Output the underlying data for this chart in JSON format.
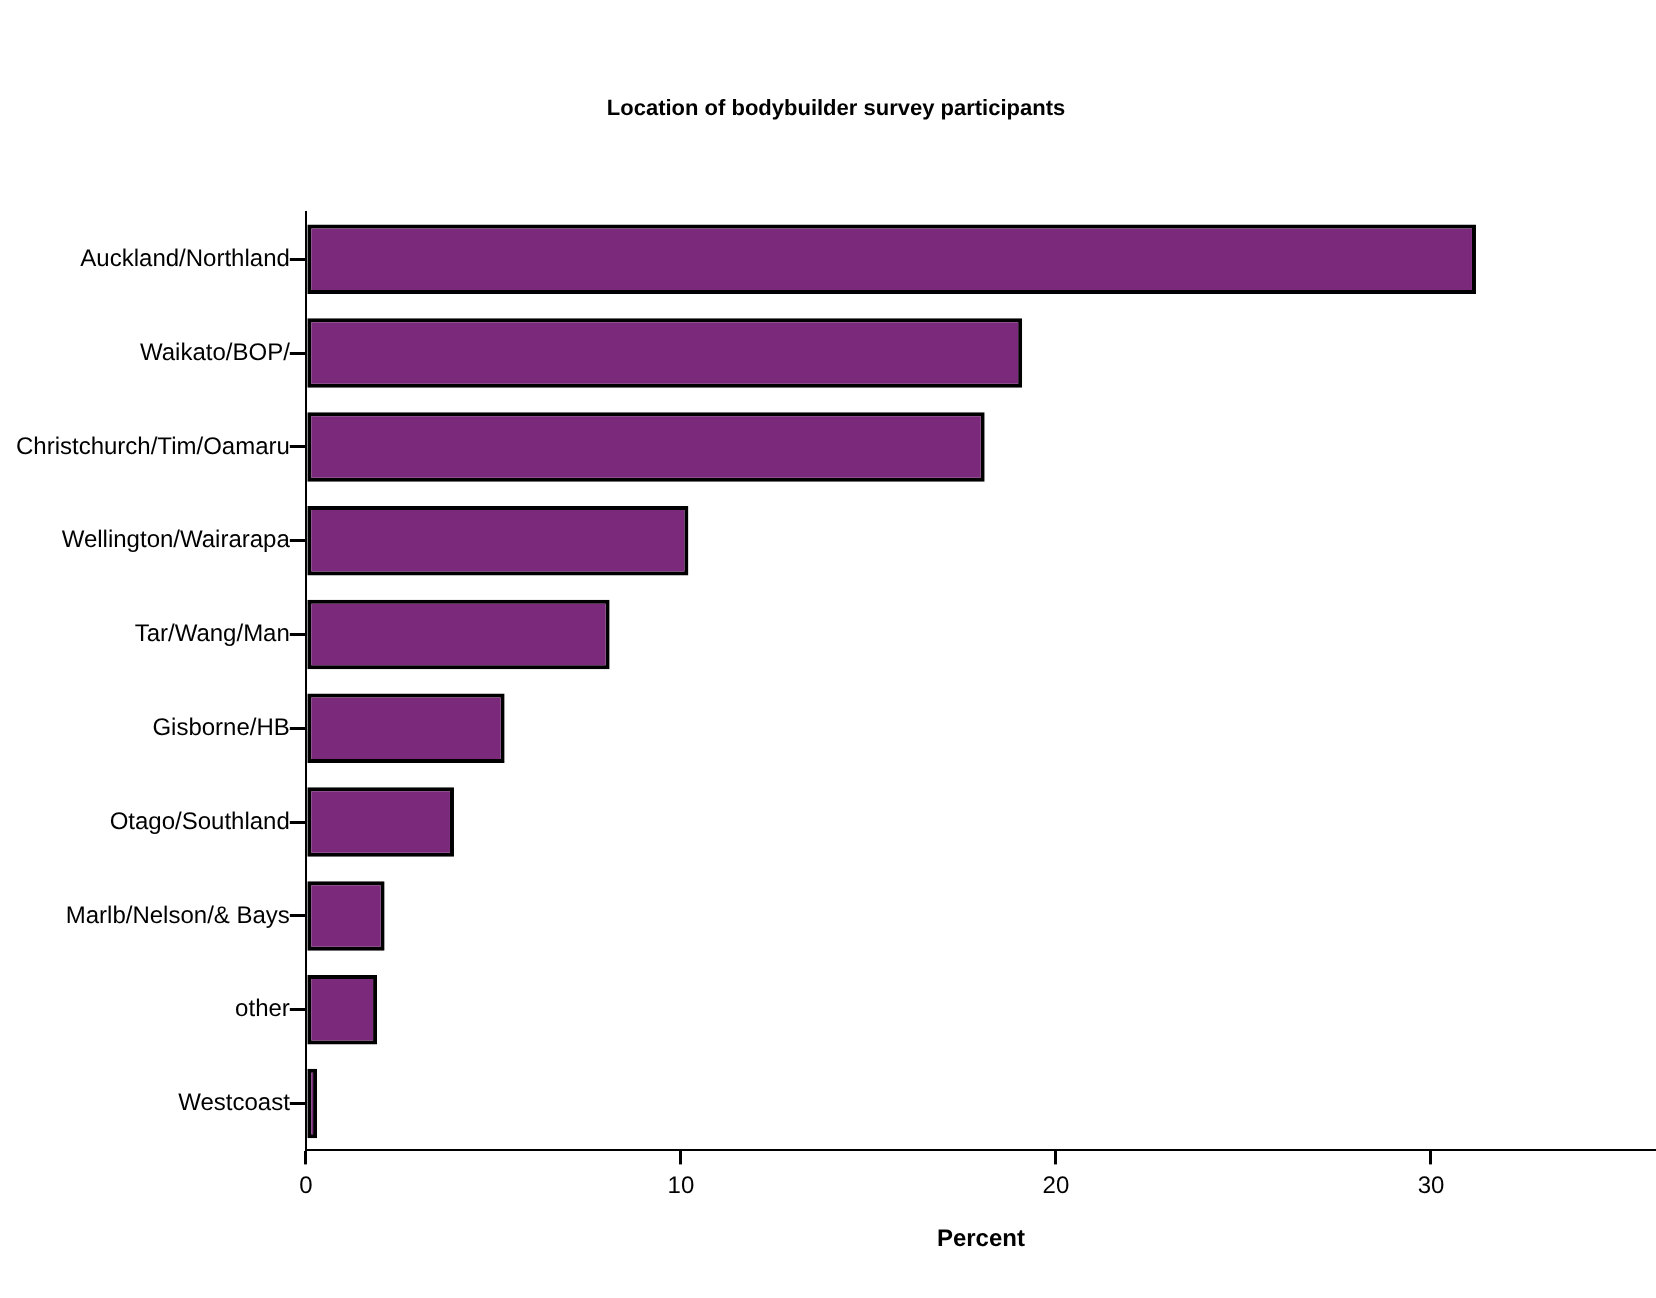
{
  "chart_data": {
    "type": "bar",
    "orientation": "horizontal",
    "title": "Location of bodybuilder survey participants",
    "xlabel": "Percent",
    "categories": [
      "Auckland/Northland",
      "Waikato/BOP/",
      "Christchurch/Tim/Oamaru",
      "Wellington/Wairarapa",
      "Tar/Wang/Man",
      "Gisborne/HB",
      "Otago/Southland",
      "Marlb/Nelson/& Bays",
      "other",
      "Westcoast"
    ],
    "values": [
      31.2,
      19.1,
      18.1,
      10.2,
      8.1,
      5.3,
      3.95,
      2.1,
      1.9,
      0.3
    ],
    "color": "#7b2a7b",
    "xlim": [
      0,
      36
    ],
    "xticks": [
      0,
      10,
      20,
      30
    ],
    "grid": false,
    "legend": false
  }
}
